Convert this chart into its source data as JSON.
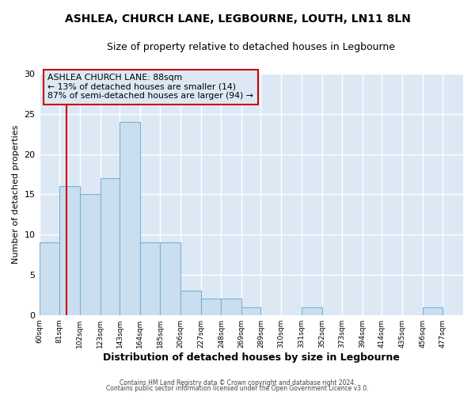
{
  "title1": "ASHLEA, CHURCH LANE, LEGBOURNE, LOUTH, LN11 8LN",
  "title2": "Size of property relative to detached houses in Legbourne",
  "xlabel": "Distribution of detached houses by size in Legbourne",
  "ylabel": "Number of detached properties",
  "bin_labels": [
    "60sqm",
    "81sqm",
    "102sqm",
    "123sqm",
    "143sqm",
    "164sqm",
    "185sqm",
    "206sqm",
    "227sqm",
    "248sqm",
    "269sqm",
    "289sqm",
    "310sqm",
    "331sqm",
    "352sqm",
    "373sqm",
    "394sqm",
    "414sqm",
    "435sqm",
    "456sqm",
    "477sqm"
  ],
  "bar_values": [
    9,
    16,
    15,
    17,
    24,
    9,
    9,
    3,
    2,
    2,
    1,
    0,
    0,
    1,
    0,
    0,
    0,
    0,
    0,
    1
  ],
  "bar_color": "#c9dff0",
  "bar_edge_color": "#7ab0d4",
  "vline_x": 88,
  "bin_edges_numeric": [
    60,
    81,
    102,
    123,
    143,
    164,
    185,
    206,
    227,
    248,
    269,
    289,
    310,
    331,
    352,
    373,
    394,
    414,
    435,
    456,
    477
  ],
  "annotation_title": "ASHLEA CHURCH LANE: 88sqm",
  "annotation_line1": "← 13% of detached houses are smaller (14)",
  "annotation_line2": "87% of semi-detached houses are larger (94) →",
  "annotation_box_color": "#cc0000",
  "ylim": [
    0,
    30
  ],
  "yticks": [
    0,
    5,
    10,
    15,
    20,
    25,
    30
  ],
  "fig_bg_color": "#ffffff",
  "plot_bg_color": "#dce9f5",
  "grid_color": "#ffffff",
  "footnote1": "Contains HM Land Registry data © Crown copyright and database right 2024.",
  "footnote2": "Contains public sector information licensed under the Open Government Licence v3.0."
}
